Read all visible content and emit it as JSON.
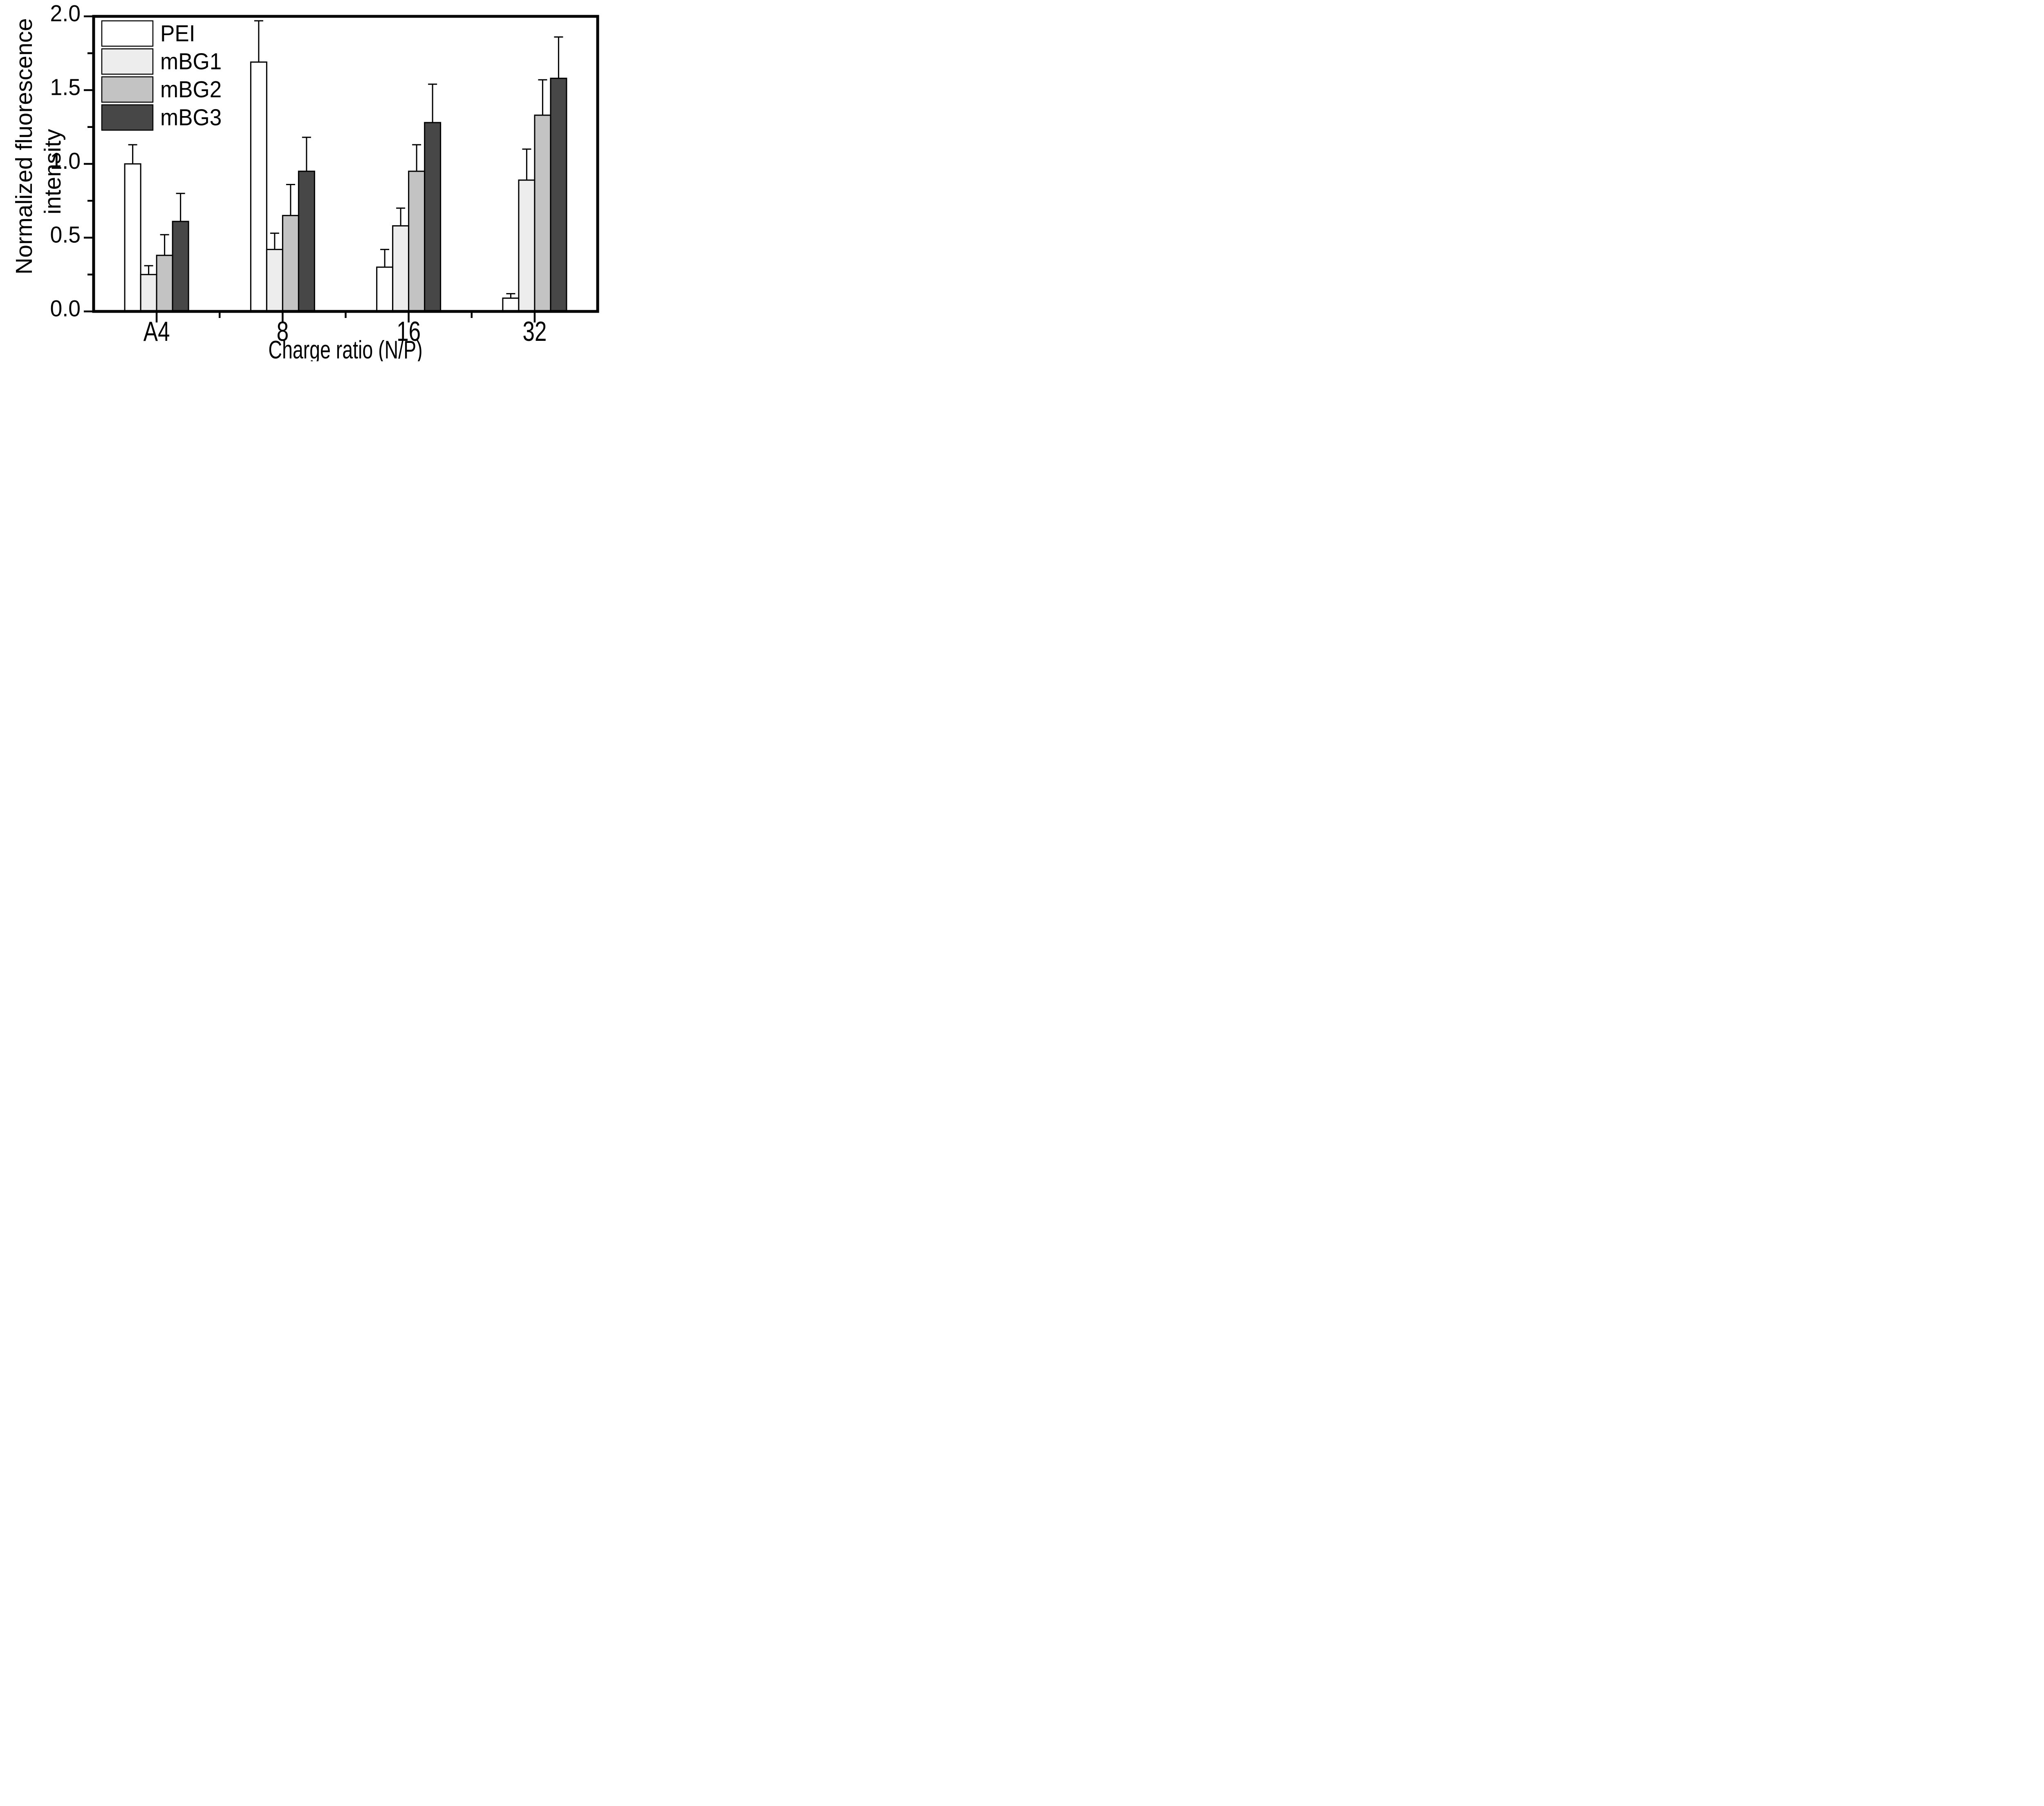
{
  "figure": {
    "background": "#ffffff",
    "text_color": "#000000",
    "axis_color": "#000000"
  },
  "chart_data": {
    "type": "bar",
    "title": "",
    "xlabel": "Charge ratio (N/P)",
    "ylabel_lines": [
      "Normalized fluorescence",
      "intensity"
    ],
    "categories": [
      "A4",
      "8",
      "16",
      "32"
    ],
    "series": [
      {
        "name": "PEI",
        "fill": "#ffffff",
        "values": [
          1.0,
          1.69,
          0.3,
          0.09
        ],
        "errors_plus": [
          0.13,
          0.28,
          0.12,
          0.03
        ]
      },
      {
        "name": "mBG1",
        "fill": "#ededed",
        "values": [
          0.25,
          0.42,
          0.58,
          0.89
        ],
        "errors_plus": [
          0.06,
          0.11,
          0.12,
          0.21
        ]
      },
      {
        "name": "mBG2",
        "fill": "#c3c3c3",
        "values": [
          0.38,
          0.65,
          0.95,
          1.33
        ],
        "errors_plus": [
          0.14,
          0.21,
          0.18,
          0.24
        ]
      },
      {
        "name": "mBG3",
        "fill": "#474747",
        "values": [
          0.61,
          0.95,
          1.28,
          1.58
        ],
        "errors_plus": [
          0.19,
          0.23,
          0.26,
          0.28
        ]
      }
    ],
    "bar_outline": "#000000",
    "error_bar_color": "#000000",
    "ylim": [
      0,
      2.0
    ],
    "ytick_values": [
      0,
      0.5,
      1.0,
      1.5,
      2.0
    ],
    "ytick_labels": [
      "0.0",
      "0.5",
      "1.0",
      "1.5",
      "2.0"
    ],
    "yminor_values": [
      0.25,
      0.75,
      1.25,
      1.75
    ],
    "grid": false,
    "legend_position": "top-left",
    "legend_entries": [
      "PEI",
      "mBG1",
      "mBG2",
      "mBG3"
    ],
    "frame": "full-box"
  }
}
